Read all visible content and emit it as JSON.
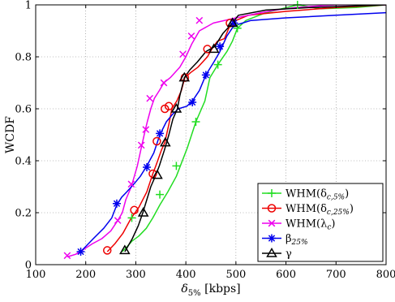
{
  "chart_data": {
    "type": "line",
    "title": "",
    "xlabel": "δ5% [kbps]",
    "xlabel_main": "δ",
    "xlabel_sub": "5%",
    "xlabel_unit": " [kbps]",
    "ylabel": "WCDF",
    "xlim": [
      100,
      800
    ],
    "ylim": [
      0,
      1
    ],
    "xticks": [
      100,
      200,
      300,
      400,
      500,
      600,
      700,
      800
    ],
    "yticks": [
      0,
      0.2,
      0.4,
      0.6,
      0.8,
      1
    ],
    "ytick_labels": [
      "0",
      "0.2",
      "0.4",
      "0.6",
      "0.8",
      "1"
    ],
    "grid": "dotted",
    "legend_position": "bottom-right",
    "series": [
      {
        "name": "WHM(δc,5%)",
        "legend_main": "WHM(δ",
        "legend_sub": "c,5%",
        "legend_end": ")",
        "color": "#22dd22",
        "marker": "plus",
        "x": [
          273,
          283,
          292,
          306,
          321,
          334,
          348,
          364,
          381,
          403,
          420,
          438,
          448,
          464,
          482,
          493,
          503,
          520,
          560,
          623,
          670,
          740,
          800
        ],
        "y": [
          0.05,
          0.07,
          0.09,
          0.11,
          0.14,
          0.18,
          0.23,
          0.28,
          0.34,
          0.45,
          0.55,
          0.63,
          0.72,
          0.77,
          0.82,
          0.86,
          0.91,
          0.94,
          0.97,
          1.0,
          0.985,
          0.99,
          1.0
        ],
        "markers_x": [
          292,
          348,
          381,
          420,
          464,
          503,
          623
        ],
        "markers_y": [
          0.18,
          0.27,
          0.38,
          0.55,
          0.77,
          0.91,
          1.0
        ]
      },
      {
        "name": "WHM(δc,25%)",
        "legend_main": "WHM(δ",
        "legend_sub": "c,25%",
        "legend_end": ")",
        "color": "#ee0000",
        "marker": "circle",
        "x": [
          243,
          258,
          274,
          291,
          306,
          322,
          334,
          340,
          351,
          358,
          366,
          372,
          382,
          391,
          398,
          410,
          424,
          443,
          452,
          463,
          477,
          488,
          500,
          525,
          600,
          700,
          800
        ],
        "y": [
          0.05,
          0.08,
          0.12,
          0.18,
          0.22,
          0.28,
          0.35,
          0.38,
          0.44,
          0.47,
          0.54,
          0.6,
          0.63,
          0.67,
          0.72,
          0.74,
          0.76,
          0.8,
          0.83,
          0.86,
          0.87,
          0.92,
          0.94,
          0.96,
          0.975,
          0.99,
          1.0
        ],
        "markers_x": [
          243,
          297,
          334,
          342,
          358,
          366,
          398,
          443,
          488
        ],
        "markers_y": [
          0.055,
          0.21,
          0.35,
          0.475,
          0.6,
          0.61,
          0.72,
          0.83,
          0.93
        ]
      },
      {
        "name": "WHM(λc)",
        "legend_main": "WHM(λ",
        "legend_sub": "c",
        "legend_end": ")",
        "color": "#ee00ee",
        "marker": "x",
        "x": [
          163,
          180,
          197,
          213,
          232,
          250,
          264,
          273,
          280,
          291,
          303,
          311,
          318,
          323,
          330,
          337,
          347,
          356,
          369,
          388,
          400,
          412,
          427,
          455,
          500,
          550,
          580,
          620,
          700,
          800
        ],
        "y": [
          0.03,
          0.04,
          0.06,
          0.08,
          0.1,
          0.13,
          0.17,
          0.2,
          0.25,
          0.3,
          0.38,
          0.45,
          0.51,
          0.55,
          0.6,
          0.64,
          0.67,
          0.7,
          0.72,
          0.76,
          0.8,
          0.85,
          0.9,
          0.93,
          0.95,
          0.97,
          0.98,
          0.99,
          1.0,
          1.0
        ],
        "markers_x": [
          163,
          264,
          291,
          311,
          320,
          328,
          356,
          394,
          411,
          427
        ],
        "markers_y": [
          0.035,
          0.17,
          0.31,
          0.46,
          0.52,
          0.64,
          0.7,
          0.81,
          0.88,
          0.94
        ]
      },
      {
        "name": "β25%",
        "legend_main": "β",
        "legend_sub": "25%",
        "legend_end": "",
        "color": "#0000ee",
        "marker": "asterisk",
        "x": [
          190,
          215,
          236,
          252,
          262,
          272,
          282,
          296,
          309,
          322,
          336,
          348,
          361,
          374,
          385,
          402,
          413,
          427,
          440,
          456,
          468,
          482,
          496,
          530,
          600,
          700,
          800
        ],
        "y": [
          0.05,
          0.1,
          0.14,
          0.18,
          0.23,
          0.26,
          0.28,
          0.31,
          0.34,
          0.38,
          0.43,
          0.5,
          0.55,
          0.58,
          0.6,
          0.61,
          0.63,
          0.67,
          0.73,
          0.78,
          0.82,
          0.88,
          0.92,
          0.94,
          0.95,
          0.96,
          0.97
        ],
        "markers_x": [
          190,
          262,
          322,
          348,
          413,
          440,
          468,
          496
        ],
        "markers_y": [
          0.05,
          0.235,
          0.375,
          0.505,
          0.625,
          0.73,
          0.84,
          0.93
        ]
      },
      {
        "name": "γ",
        "legend_main": "γ",
        "legend_sub": "",
        "legend_end": "",
        "color": "#000000",
        "marker": "triangle",
        "x": [
          278,
          293,
          305,
          314,
          322,
          330,
          339,
          347,
          357,
          366,
          374,
          383,
          388,
          397,
          408,
          423,
          440,
          458,
          474,
          493,
          505,
          560,
          650,
          800
        ],
        "y": [
          0.05,
          0.1,
          0.15,
          0.2,
          0.25,
          0.3,
          0.34,
          0.38,
          0.44,
          0.5,
          0.56,
          0.6,
          0.65,
          0.72,
          0.75,
          0.78,
          0.82,
          0.84,
          0.89,
          0.93,
          0.96,
          0.98,
          0.99,
          1.0
        ],
        "markers_x": [
          278,
          315,
          343,
          359,
          381,
          397,
          456,
          493
        ],
        "markers_y": [
          0.055,
          0.2,
          0.345,
          0.47,
          0.6,
          0.72,
          0.83,
          0.93
        ]
      }
    ]
  }
}
